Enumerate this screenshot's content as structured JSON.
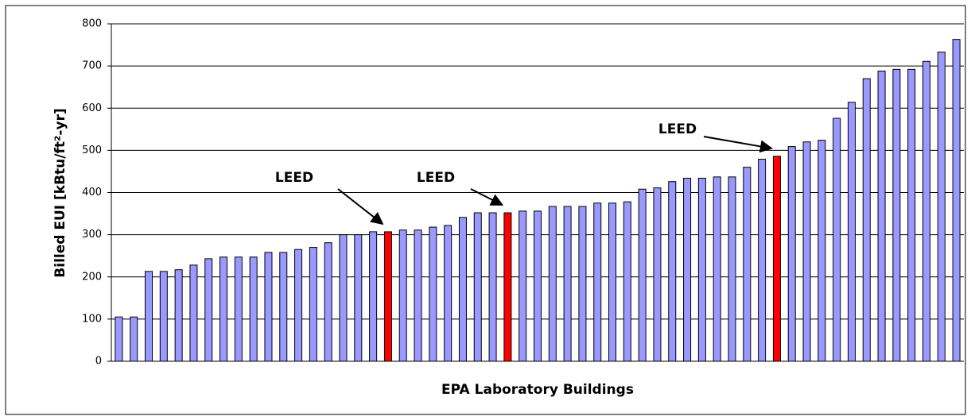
{
  "chart_data": {
    "type": "bar",
    "x_label": "EPA Laboratory Buildings",
    "y_label": "Billed EUI [kBtu/ft²-yr]",
    "annotations": [
      "LEED",
      "LEED",
      "LEED"
    ],
    "categories": [
      null,
      null,
      null,
      null,
      null,
      null,
      null,
      null,
      null,
      null,
      null,
      null,
      null,
      null,
      null,
      null,
      null,
      null,
      null,
      null,
      null,
      null,
      null,
      null,
      null,
      null,
      null,
      null,
      null,
      null,
      null,
      null,
      null,
      null,
      null,
      null,
      null,
      null,
      null,
      null,
      null,
      null,
      null,
      null,
      null,
      null,
      null,
      null,
      null,
      null,
      null,
      null,
      null,
      null,
      null,
      null,
      null
    ],
    "values": [
      105,
      105,
      213,
      213,
      217,
      228,
      243,
      247,
      247,
      247,
      258,
      258,
      265,
      270,
      281,
      300,
      300,
      307,
      307,
      311,
      311,
      318,
      322,
      341,
      352,
      352,
      352,
      356,
      356,
      367,
      367,
      367,
      375,
      375,
      378,
      408,
      411,
      426,
      434,
      434,
      437,
      437,
      460,
      479,
      486,
      509,
      520,
      524,
      576,
      614,
      670,
      688,
      692,
      692,
      711,
      733,
      763
    ],
    "colors": [
      "#9999ff",
      "#9999ff",
      "#9999ff",
      "#9999ff",
      "#9999ff",
      "#9999ff",
      "#9999ff",
      "#9999ff",
      "#9999ff",
      "#9999ff",
      "#9999ff",
      "#9999ff",
      "#9999ff",
      "#9999ff",
      "#9999ff",
      "#9999ff",
      "#9999ff",
      "#9999ff",
      "#ff0000",
      "#9999ff",
      "#9999ff",
      "#9999ff",
      "#9999ff",
      "#9999ff",
      "#9999ff",
      "#9999ff",
      "#ff0000",
      "#9999ff",
      "#9999ff",
      "#9999ff",
      "#9999ff",
      "#9999ff",
      "#9999ff",
      "#9999ff",
      "#9999ff",
      "#9999ff",
      "#9999ff",
      "#9999ff",
      "#9999ff",
      "#9999ff",
      "#9999ff",
      "#9999ff",
      "#9999ff",
      "#9999ff",
      "#ff0000",
      "#9999ff",
      "#9999ff",
      "#9999ff",
      "#9999ff",
      "#9999ff",
      "#9999ff",
      "#9999ff",
      "#9999ff",
      "#9999ff",
      "#9999ff",
      "#9999ff",
      "#9999ff"
    ],
    "ylim": [
      0,
      800
    ],
    "yticks": [
      0,
      100,
      200,
      300,
      400,
      500,
      600,
      700,
      800
    ],
    "grid": true
  }
}
